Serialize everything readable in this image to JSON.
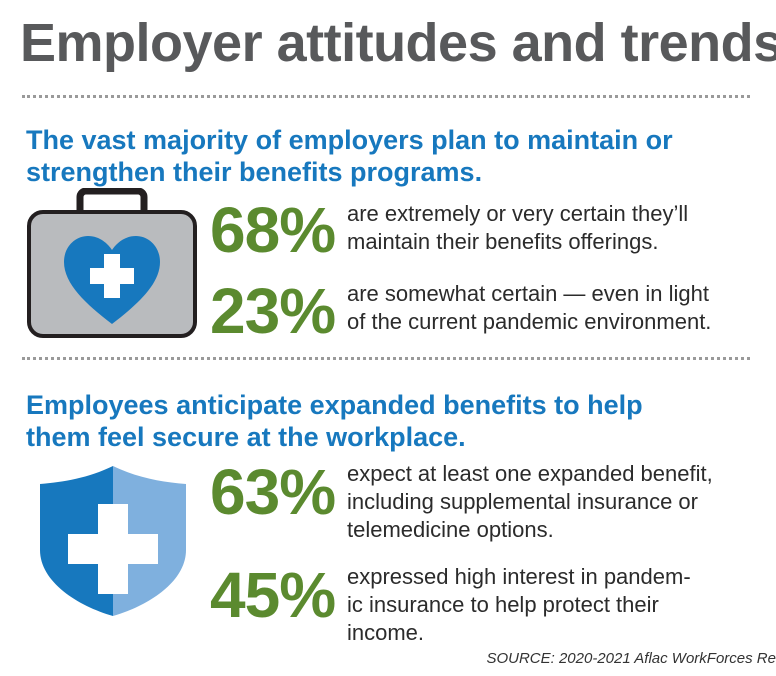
{
  "title": "Employer attitudes and trends",
  "sections": [
    {
      "heading": [
        "The vast majority of employers plan to maintain or",
        "strengthen their benefits programs."
      ],
      "stats": [
        {
          "figure": "68%",
          "lines": [
            "are extremely or very certain they’ll",
            "maintain their benefits offerings."
          ]
        },
        {
          "figure": "23%",
          "lines": [
            "are somewhat certain — even in light",
            "of the current pandemic environment."
          ]
        }
      ]
    },
    {
      "heading": [
        "Employees anticipate expanded benefits to help",
        "them feel secure at the workplace."
      ],
      "stats": [
        {
          "figure": "63%",
          "lines": [
            "expect at least one expanded benefit,",
            "including supplemental insurance or",
            "telemedicine options."
          ]
        },
        {
          "figure": "45%",
          "lines": [
            "expressed high interest in pandem-",
            "ic insurance to help protect their",
            "income."
          ]
        }
      ]
    }
  ],
  "source": "SOURCE: 2020-2021 Aflac WorkForces Re"
}
